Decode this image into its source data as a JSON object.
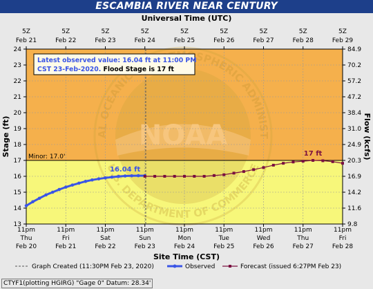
{
  "title": "ESCAMBIA RIVER NEAR CENTURY",
  "top_axis_title": "Universal Time (UTC)",
  "bottom_axis_title": "Site Time (CST)",
  "left_axis_title": "Stage (ft)",
  "right_axis_title": "Flow (kcfs)",
  "utc_ticks": [
    {
      "l1": "5Z",
      "l2": "Feb 21"
    },
    {
      "l1": "5Z",
      "l2": "Feb 22"
    },
    {
      "l1": "5Z",
      "l2": "Feb 23"
    },
    {
      "l1": "5Z",
      "l2": "Feb 24"
    },
    {
      "l1": "5Z",
      "l2": "Feb 25"
    },
    {
      "l1": "5Z",
      "l2": "Feb 26"
    },
    {
      "l1": "5Z",
      "l2": "Feb 27"
    },
    {
      "l1": "5Z",
      "l2": "Feb 28"
    },
    {
      "l1": "5Z",
      "l2": "Feb 29"
    }
  ],
  "cst_ticks": [
    {
      "l1": "11pm",
      "l2": "Thu",
      "l3": "Feb 20"
    },
    {
      "l1": "11pm",
      "l2": "Fri",
      "l3": "Feb 21"
    },
    {
      "l1": "11pm",
      "l2": "Sat",
      "l3": "Feb 22"
    },
    {
      "l1": "11pm",
      "l2": "Sun",
      "l3": "Feb 23"
    },
    {
      "l1": "11pm",
      "l2": "Mon",
      "l3": "Feb 24"
    },
    {
      "l1": "11pm",
      "l2": "Tue",
      "l3": "Feb 25"
    },
    {
      "l1": "11pm",
      "l2": "Wed",
      "l3": "Feb 26"
    },
    {
      "l1": "11pm",
      "l2": "Thu",
      "l3": "Feb 27"
    },
    {
      "l1": "11pm",
      "l2": "Fri",
      "l3": "Feb 28"
    }
  ],
  "stage_ticks": [
    "13",
    "14",
    "15",
    "16",
    "17",
    "18",
    "19",
    "20",
    "21",
    "22",
    "23",
    "24"
  ],
  "flow_ticks": [
    "9.8",
    "11.6",
    "14.2",
    "16.9",
    "20.3",
    "24.9",
    "31.0",
    "38.4",
    "47.2",
    "57.2",
    "70.2",
    "84.9"
  ],
  "minor_label": "Minor: 17.0'",
  "info_box": {
    "line1": "Latest observed value: 16.04 ft at 11:00 PM",
    "line2a": "CST 23-Feb-2020.",
    "line2b": " Flood Stage is 17 ft"
  },
  "observed_label": "16.04 ft",
  "forecast_label": "17 ft",
  "watermark": "NOAA",
  "watermark_ring": "NATIONAL OCEANIC AND ATMOSPHERIC ADMINISTRATION",
  "watermark_bottom": "U.S. DEPARTMENT OF COMMERCE",
  "legend": {
    "created": "Graph Created (11:30PM Feb 23, 2020)",
    "observed": "Observed",
    "forecast": "Forecast (issued 6:27PM Feb 23)"
  },
  "footer": "CTYF1(plotting HGIRG) \"Gage 0\" Datum: 28.34'",
  "colors": {
    "above_flood": "#f5b04c",
    "below_flood": "#f7f77a",
    "observed": "#3a55e6",
    "forecast": "#7a1040",
    "title_bg": "#1d3f8a"
  },
  "chart_data": {
    "type": "line",
    "title": "ESCAMBIA RIVER NEAR CENTURY",
    "xlabel": "Site Time (CST)",
    "ylabel": "Stage (ft)",
    "ylabel_right": "Flow (kcfs)",
    "xlim": [
      "Feb 20 23:00",
      "Feb 28 23:00"
    ],
    "ylim": [
      13,
      24
    ],
    "flood_stage": 17.0,
    "series": [
      {
        "name": "Observed",
        "x": [
          "Feb 20 23:00",
          "Feb 21 03:00",
          "Feb 21 07:00",
          "Feb 21 11:00",
          "Feb 21 15:00",
          "Feb 21 19:00",
          "Feb 21 23:00",
          "Feb 22 03:00",
          "Feb 22 07:00",
          "Feb 22 11:00",
          "Feb 22 15:00",
          "Feb 22 19:00",
          "Feb 22 23:00",
          "Feb 23 03:00",
          "Feb 23 07:00",
          "Feb 23 11:00",
          "Feb 23 15:00",
          "Feb 23 19:00",
          "Feb 23 23:00"
        ],
        "values": [
          14.15,
          14.4,
          14.62,
          14.83,
          15.0,
          15.17,
          15.32,
          15.45,
          15.57,
          15.68,
          15.77,
          15.84,
          15.9,
          15.95,
          15.99,
          16.02,
          16.03,
          16.04,
          16.04
        ]
      },
      {
        "name": "Forecast (issued 6:27PM Feb 23)",
        "x": [
          "Feb 23 23:00",
          "Feb 24 05:00",
          "Feb 24 11:00",
          "Feb 24 17:00",
          "Feb 24 23:00",
          "Feb 25 05:00",
          "Feb 25 11:00",
          "Feb 25 17:00",
          "Feb 25 23:00",
          "Feb 26 05:00",
          "Feb 26 11:00",
          "Feb 26 17:00",
          "Feb 26 23:00",
          "Feb 27 05:00",
          "Feb 27 11:00",
          "Feb 27 17:00",
          "Feb 27 23:00",
          "Feb 28 05:00",
          "Feb 28 11:00",
          "Feb 28 17:00",
          "Feb 28 23:00"
        ],
        "values": [
          16.0,
          16.0,
          16.0,
          16.0,
          16.0,
          16.0,
          16.0,
          16.05,
          16.1,
          16.2,
          16.3,
          16.42,
          16.55,
          16.7,
          16.82,
          16.9,
          16.95,
          17.0,
          16.98,
          16.92,
          16.82
        ]
      }
    ]
  }
}
